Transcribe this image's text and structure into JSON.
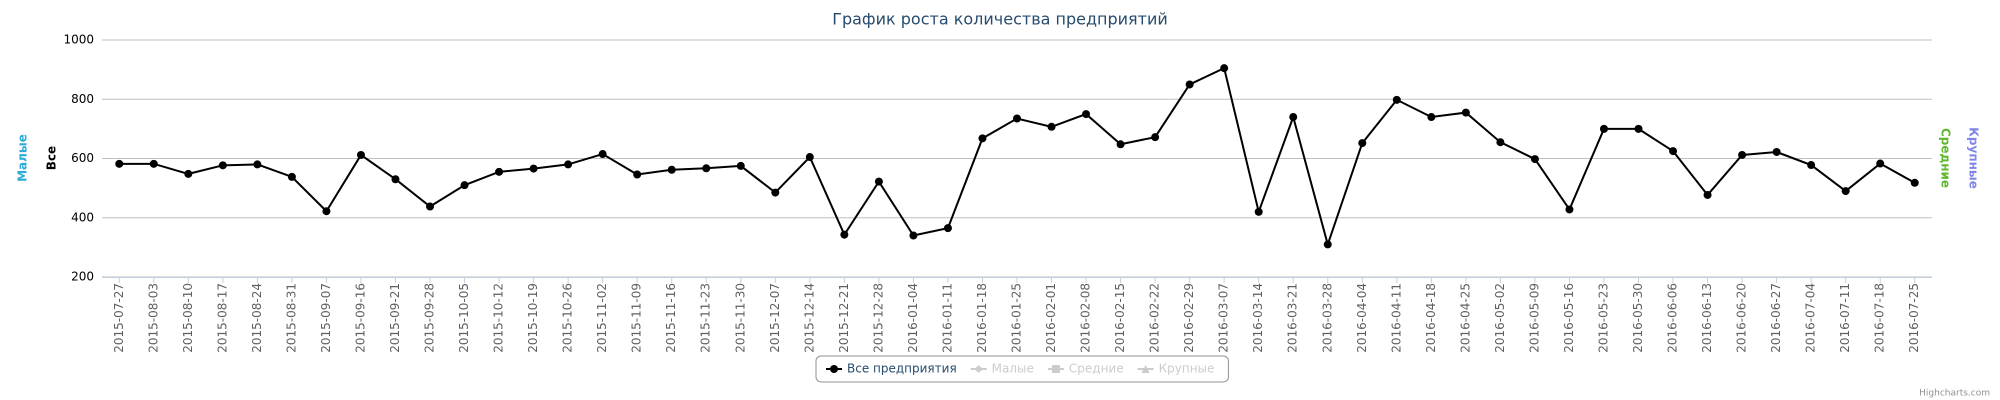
{
  "chart_data": {
    "type": "line",
    "title": "График роста количества предприятий",
    "categories": [
      "2015-07-27",
      "2015-08-03",
      "2015-08-10",
      "2015-08-17",
      "2015-08-24",
      "2015-08-31",
      "2015-09-07",
      "2015-09-16",
      "2015-09-21",
      "2015-09-28",
      "2015-10-05",
      "2015-10-12",
      "2015-10-19",
      "2015-10-26",
      "2015-11-02",
      "2015-11-09",
      "2015-11-16",
      "2015-11-23",
      "2015-11-30",
      "2015-12-07",
      "2015-12-14",
      "2015-12-21",
      "2015-12-28",
      "2016-01-04",
      "2016-01-11",
      "2016-01-18",
      "2016-01-25",
      "2016-02-01",
      "2016-02-08",
      "2016-02-15",
      "2016-02-22",
      "2016-02-29",
      "2016-03-07",
      "2016-03-14",
      "2016-03-21",
      "2016-03-28",
      "2016-04-04",
      "2016-04-11",
      "2016-04-18",
      "2016-04-25",
      "2016-05-02",
      "2016-05-09",
      "2016-05-16",
      "2016-05-23",
      "2016-05-30",
      "2016-06-06",
      "2016-06-13",
      "2016-06-20",
      "2016-06-27",
      "2016-07-04",
      "2016-07-11",
      "2016-07-18",
      "2016-07-25"
    ],
    "series": [
      {
        "name": "Все предприятия",
        "color": "#000000",
        "visible": true,
        "values": [
          582,
          582,
          548,
          577,
          580,
          538,
          422,
          612,
          530,
          438,
          510,
          555,
          566,
          580,
          615,
          546,
          562,
          567,
          575,
          485,
          605,
          343,
          522,
          340,
          365,
          668,
          735,
          707,
          750,
          648,
          672,
          850,
          905,
          420,
          740,
          310,
          652,
          798,
          740,
          755,
          655,
          598,
          428,
          700,
          700,
          625,
          477,
          612,
          622,
          578,
          490,
          583,
          518
        ]
      },
      {
        "name": "Малые",
        "color": "#2caad8",
        "visible": false
      },
      {
        "name": "Средние",
        "color": "#5cb82c",
        "visible": false
      },
      {
        "name": "Крупные",
        "color": "#8085e9",
        "visible": false
      }
    ],
    "axis_titles": [
      {
        "text": "Малые",
        "color": "#2caad8",
        "side": "left"
      },
      {
        "text": "Все",
        "color": "#000000",
        "side": "left"
      },
      {
        "text": "Средние",
        "color": "#5cb82c",
        "side": "right"
      },
      {
        "text": "Крупные",
        "color": "#8085e9",
        "side": "right"
      }
    ],
    "ylim": [
      200,
      1000
    ],
    "yticks": [
      200,
      400,
      600,
      800,
      1000
    ],
    "grid": true,
    "legend": "bottom",
    "credits": "Highcharts.com"
  }
}
